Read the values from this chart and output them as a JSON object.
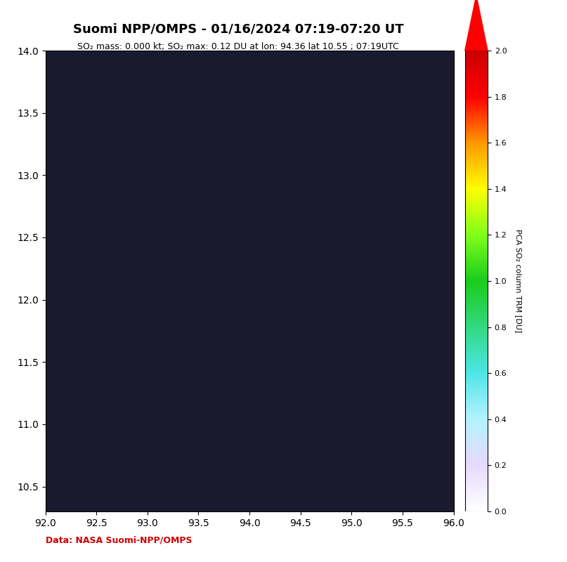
{
  "title": "Suomi NPP/OMPS - 01/16/2024 07:19-07:20 UT",
  "subtitle": "SO₂ mass: 0.000 kt; SO₂ max: 0.12 DU at lon: 94.36 lat 10.55 ; 07:19UTC",
  "data_credit": "Data: NASA Suomi-NPP/OMPS",
  "lon_min": 92.0,
  "lon_max": 96.0,
  "lat_min": 10.3,
  "lat_max": 14.0,
  "cbar_label": "PCA SO₂ column TRM [DU]",
  "cbar_min": 0.0,
  "cbar_max": 2.0,
  "background_color": "#111111",
  "land_color": "#000000",
  "water_color": "#000000",
  "title_fontsize": 13,
  "subtitle_fontsize": 9,
  "credit_fontsize": 9,
  "credit_color": "#cc0000",
  "xticks": [
    92.5,
    93.0,
    93.5,
    94.0,
    94.5,
    95.0,
    95.5
  ],
  "yticks": [
    10.5,
    11.0,
    11.5,
    12.0,
    12.5,
    13.0,
    13.5
  ],
  "grid_color": "white",
  "grid_linestyle": "--",
  "grid_alpha": 0.5,
  "max_marker_lon": 94.36,
  "max_marker_lat": 10.55,
  "max_marker_color": "#cc6600",
  "pink_patch_color": "#ffb0b0",
  "pink_patch_alpha": 0.5
}
